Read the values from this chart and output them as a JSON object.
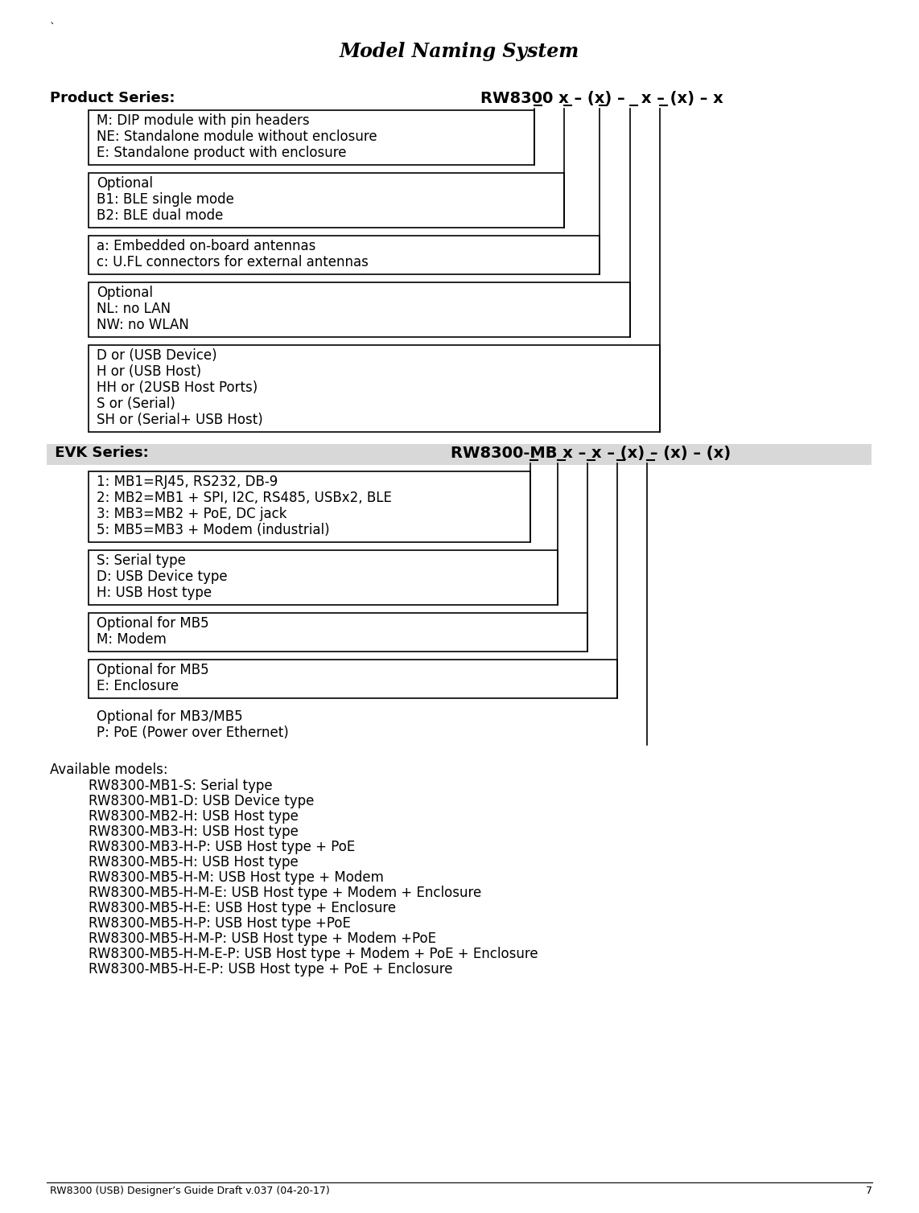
{
  "title": "Model Naming System",
  "backtick": "`",
  "product_series_label": "Product Series:",
  "product_formula": "RW8300 x – (x) –   x – (x) – x",
  "evk_series_label": " EVK Series:",
  "evk_formula": "RW8300-MB x – x – (x) – (x) – (x)",
  "product_boxes": [
    [
      "M: DIP module with pin headers",
      "NE: Standalone module without enclosure",
      "E: Standalone product with enclosure"
    ],
    [
      "Optional",
      "B1: BLE single mode",
      "B2: BLE dual mode"
    ],
    [
      "a: Embedded on-board antennas",
      "c: U.FL connectors for external antennas"
    ],
    [
      "Optional",
      "NL: no LAN",
      "NW: no WLAN"
    ],
    [
      "D or (USB Device)",
      "H or (USB Host)",
      "HH or (2USB Host Ports)",
      "S or (Serial)",
      "SH or (Serial+ USB Host)"
    ]
  ],
  "evk_boxes": [
    [
      "1: MB1=RJ45, RS232, DB-9",
      "2: MB2=MB1 + SPI, I2C, RS485, USBx2, BLE",
      "3: MB3=MB2 + PoE, DC jack",
      "5: MB5=MB3 + Modem (industrial)"
    ],
    [
      "S: Serial type",
      "D: USB Device type",
      "H: USB Host type"
    ],
    [
      "Optional for MB5",
      "M: Modem"
    ],
    [
      "Optional for MB5",
      "E: Enclosure"
    ],
    [
      "Optional for MB3/MB5",
      "P: PoE (Power over Ethernet)"
    ]
  ],
  "evk_has_border": [
    true,
    true,
    true,
    true,
    false
  ],
  "available_models_title": "Available models:",
  "available_models": [
    "RW8300-MB1-S: Serial type",
    "RW8300-MB1-D: USB Device type",
    "RW8300-MB2-H: USB Host type",
    "RW8300-MB3-H: USB Host type",
    "RW8300-MB3-H-P: USB Host type + PoE",
    "RW8300-MB5-H: USB Host type",
    "RW8300-MB5-H-M: USB Host type + Modem",
    "RW8300-MB5-H-M-E: USB Host type + Modem + Enclosure",
    "RW8300-MB5-H-E: USB Host type + Enclosure",
    "RW8300-MB5-H-P: USB Host type +PoE",
    "RW8300-MB5-H-M-P: USB Host type + Modem +PoE",
    "RW8300-MB5-H-M-E-P: USB Host type + Modem + PoE + Enclosure",
    "RW8300-MB5-H-E-P: USB Host type + PoE + Enclosure"
  ],
  "footer": "RW8300 (USB) Designer’s Guide Draft v.037 (04-20-17)",
  "page_number": "7"
}
